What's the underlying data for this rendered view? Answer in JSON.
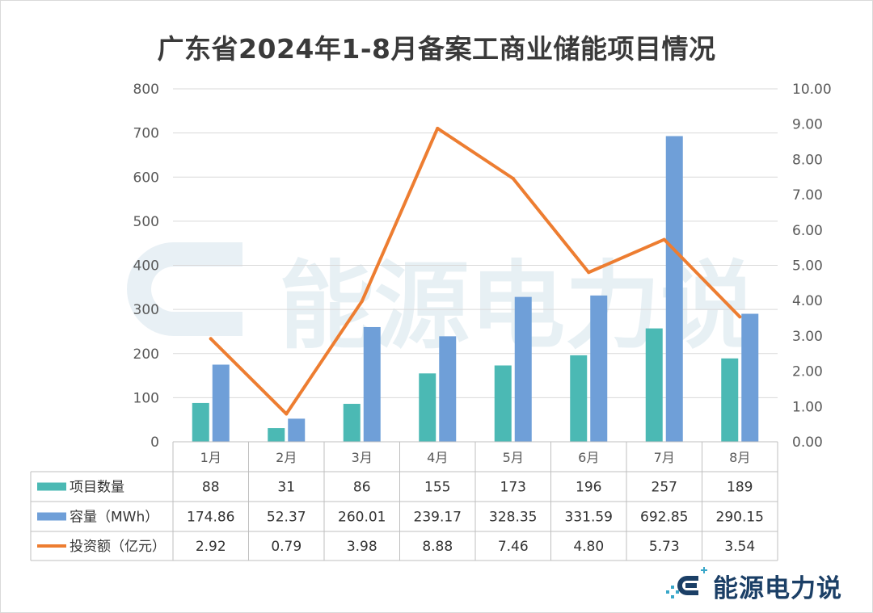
{
  "chart_data": {
    "type": "bar",
    "title": "广东省2024年1-8月备案工商业储能项目情况",
    "categories": [
      "1月",
      "2月",
      "3月",
      "4月",
      "5月",
      "6月",
      "7月",
      "8月"
    ],
    "series": [
      {
        "name": "项目数量",
        "type": "bar",
        "axis": "left",
        "color": "#4bb9b4",
        "values": [
          88,
          31,
          86,
          155,
          173,
          196,
          257,
          189
        ],
        "labels": [
          "88",
          "31",
          "86",
          "155",
          "173",
          "196",
          "257",
          "189"
        ]
      },
      {
        "name": "容量（MWh）",
        "type": "bar",
        "axis": "left",
        "color": "#6f9fd8",
        "values": [
          174.86,
          52.37,
          260.01,
          239.17,
          328.35,
          331.59,
          692.85,
          290.15
        ],
        "labels": [
          "174.86",
          "52.37",
          "260.01",
          "239.17",
          "328.35",
          "331.59",
          "692.85",
          "290.15"
        ]
      },
      {
        "name": "投资额（亿元）",
        "type": "line",
        "axis": "right",
        "color": "#ed7d31",
        "values": [
          2.92,
          0.79,
          3.98,
          8.88,
          7.46,
          4.8,
          5.73,
          3.54
        ],
        "labels": [
          "2.92",
          "0.79",
          "3.98",
          "8.88",
          "7.46",
          "4.80",
          "5.73",
          "3.54"
        ]
      }
    ],
    "y_left": {
      "range": [
        0,
        800
      ],
      "ticks": [
        "0",
        "100",
        "200",
        "300",
        "400",
        "500",
        "600",
        "700",
        "800"
      ]
    },
    "y_right": {
      "range": [
        0,
        10
      ],
      "ticks": [
        "0.00",
        "1.00",
        "2.00",
        "3.00",
        "4.00",
        "5.00",
        "6.00",
        "7.00",
        "8.00",
        "9.00",
        "10.00"
      ]
    },
    "grid": true,
    "legend": "data-table-below"
  },
  "watermark": {
    "text": "能源电力说"
  },
  "logo": {
    "text": "能源电力说"
  }
}
